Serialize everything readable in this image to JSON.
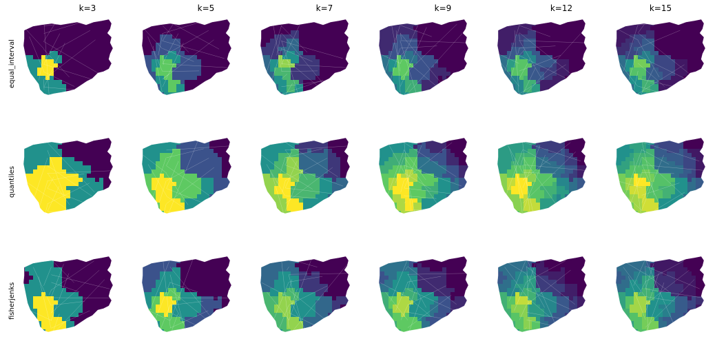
{
  "figure": {
    "column_titles": [
      "k=3",
      "k=5",
      "k=7",
      "k=9",
      "k=12",
      "k=15"
    ],
    "row_labels": [
      "equal_interval",
      "quantiles",
      "fisherjenks"
    ],
    "colormap": [
      "#440154",
      "#3b528b",
      "#21918c",
      "#5ec962",
      "#fde725"
    ],
    "background": "#ffffff",
    "boundary_color": "#ffffff"
  }
}
